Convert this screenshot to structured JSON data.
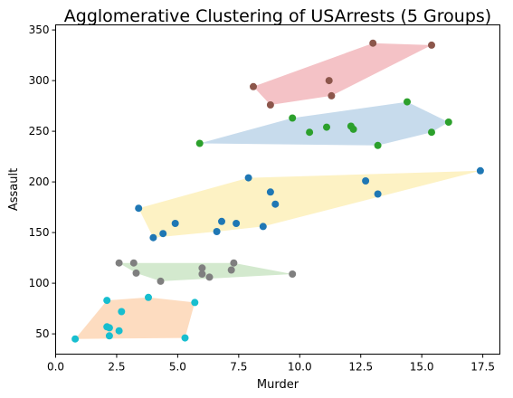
{
  "chart_data": {
    "type": "scatter",
    "title": "Agglomerative Clustering of USArrests (5 Groups)",
    "xlabel": "Murder",
    "ylabel": "Assault",
    "xlim": [
      0,
      18.2
    ],
    "ylim": [
      30,
      355
    ],
    "xticks": [
      0.0,
      2.5,
      5.0,
      7.5,
      10.0,
      12.5,
      15.0,
      17.5
    ],
    "xtick_labels": [
      "0.0",
      "2.5",
      "5.0",
      "7.5",
      "10.0",
      "12.5",
      "15.0",
      "17.5"
    ],
    "yticks": [
      50,
      100,
      150,
      200,
      250,
      300,
      350
    ],
    "ytick_labels": [
      "50",
      "100",
      "150",
      "200",
      "250",
      "300",
      "350"
    ],
    "grid": false,
    "series": [
      {
        "color": "#8c564b",
        "hull_color": "#f4c2c6",
        "points": [
          [
            8.1,
            294
          ],
          [
            8.8,
            276
          ],
          [
            11.2,
            300
          ],
          [
            11.3,
            285
          ],
          [
            13.0,
            337
          ],
          [
            15.4,
            335
          ]
        ]
      },
      {
        "color": "#2ca02c",
        "hull_color": "#c7dbec",
        "points": [
          [
            5.9,
            238
          ],
          [
            9.7,
            263
          ],
          [
            10.4,
            249
          ],
          [
            11.1,
            254
          ],
          [
            12.1,
            255
          ],
          [
            12.2,
            252
          ],
          [
            13.2,
            236
          ],
          [
            14.4,
            279
          ],
          [
            15.4,
            249
          ],
          [
            16.1,
            259
          ]
        ]
      },
      {
        "color": "#1f77b4",
        "hull_color": "#fdf2c4",
        "points": [
          [
            3.4,
            174
          ],
          [
            4.0,
            145
          ],
          [
            4.4,
            149
          ],
          [
            4.9,
            159
          ],
          [
            6.6,
            151
          ],
          [
            6.8,
            161
          ],
          [
            7.4,
            159
          ],
          [
            7.9,
            204
          ],
          [
            8.5,
            156
          ],
          [
            8.8,
            190
          ],
          [
            9.0,
            178
          ],
          [
            12.7,
            201
          ],
          [
            13.2,
            188
          ],
          [
            17.4,
            211
          ]
        ]
      },
      {
        "color": "#7f7f7f",
        "hull_color": "#d3e9ce",
        "points": [
          [
            2.6,
            120
          ],
          [
            3.2,
            120
          ],
          [
            3.3,
            110
          ],
          [
            4.3,
            102
          ],
          [
            6.0,
            115
          ],
          [
            6.0,
            109
          ],
          [
            6.3,
            106
          ],
          [
            7.2,
            113
          ],
          [
            7.3,
            120
          ],
          [
            9.7,
            109
          ]
        ]
      },
      {
        "color": "#17becf",
        "hull_color": "#fddcc0",
        "points": [
          [
            0.8,
            45
          ],
          [
            2.1,
            83
          ],
          [
            2.1,
            57
          ],
          [
            2.2,
            56
          ],
          [
            2.2,
            48
          ],
          [
            2.6,
            53
          ],
          [
            2.7,
            72
          ],
          [
            3.8,
            86
          ],
          [
            5.3,
            46
          ],
          [
            5.7,
            81
          ]
        ]
      }
    ]
  }
}
